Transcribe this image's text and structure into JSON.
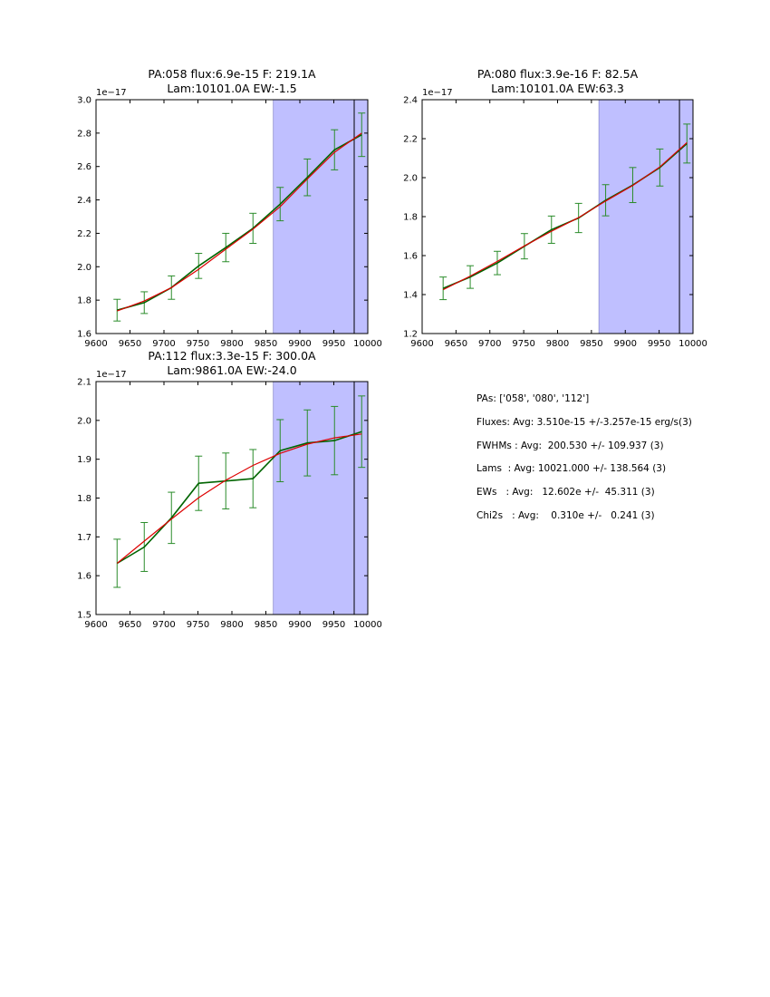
{
  "chart_data": [
    {
      "type": "line",
      "title": [
        "PA:058 flux:6.9e-15 F: 219.1A",
        "Lam:10101.0A EW:-1.5"
      ],
      "offset_label": "1e−17",
      "xlim": [
        9600,
        10000
      ],
      "ylim": [
        1.6,
        3.0
      ],
      "xticks": [
        9600,
        9650,
        9700,
        9750,
        9800,
        9850,
        9900,
        9950,
        10000
      ],
      "yticks": [
        1.6,
        1.8,
        2.0,
        2.2,
        2.4,
        2.6,
        2.8,
        3.0
      ],
      "ytick_labels": [
        "1.6",
        "1.8",
        "2.0",
        "2.2",
        "2.4",
        "2.6",
        "2.8",
        "3.0"
      ],
      "shaded_span": [
        9861,
        10000
      ],
      "vline": 9980,
      "x": [
        9631,
        9671,
        9711,
        9751,
        9791,
        9831,
        9871,
        9911,
        9951,
        9991
      ],
      "series": [
        {
          "color": "#006400",
          "values": [
            1.74,
            1.785,
            1.875,
            2.005,
            2.115,
            2.23,
            2.375,
            2.535,
            2.7,
            2.79
          ],
          "errors": [
            0.065,
            0.065,
            0.07,
            0.075,
            0.085,
            0.09,
            0.1,
            0.11,
            0.12,
            0.13
          ]
        },
        {
          "color": "#dd0000",
          "values": [
            1.735,
            1.795,
            1.875,
            1.985,
            2.105,
            2.225,
            2.36,
            2.525,
            2.685,
            2.8
          ]
        }
      ]
    },
    {
      "type": "line",
      "title": [
        "PA:080 flux:3.9e-16 F: 82.5A",
        "Lam:10101.0A EW:63.3"
      ],
      "offset_label": "1e−17",
      "xlim": [
        9600,
        10000
      ],
      "ylim": [
        1.2,
        2.4
      ],
      "xticks": [
        9600,
        9650,
        9700,
        9750,
        9800,
        9850,
        9900,
        9950,
        10000
      ],
      "yticks": [
        1.2,
        1.4,
        1.6,
        1.8,
        2.0,
        2.2,
        2.4
      ],
      "ytick_labels": [
        "1.2",
        "1.4",
        "1.6",
        "1.8",
        "2.0",
        "2.2",
        "2.4"
      ],
      "shaded_span": [
        9861,
        10000
      ],
      "vline": 9980,
      "x": [
        9631,
        9671,
        9711,
        9751,
        9791,
        9831,
        9871,
        9911,
        9951,
        9991
      ],
      "series": [
        {
          "color": "#006400",
          "values": [
            1.432,
            1.49,
            1.562,
            1.648,
            1.733,
            1.793,
            1.884,
            1.962,
            2.052,
            2.175
          ],
          "errors": [
            0.058,
            0.058,
            0.06,
            0.065,
            0.07,
            0.075,
            0.08,
            0.09,
            0.095,
            0.1
          ]
        },
        {
          "color": "#dd0000",
          "values": [
            1.425,
            1.495,
            1.57,
            1.65,
            1.725,
            1.795,
            1.88,
            1.96,
            2.055,
            2.18
          ]
        }
      ]
    },
    {
      "type": "line",
      "title": [
        "PA:112 flux:3.3e-15 F: 300.0A",
        "Lam:9861.0A EW:-24.0"
      ],
      "offset_label": "1e−17",
      "xlim": [
        9600,
        10000
      ],
      "ylim": [
        1.5,
        2.1
      ],
      "xticks": [
        9600,
        9650,
        9700,
        9750,
        9800,
        9850,
        9900,
        9950,
        10000
      ],
      "yticks": [
        1.5,
        1.6,
        1.7,
        1.8,
        1.9,
        2.0,
        2.1
      ],
      "ytick_labels": [
        "1.5",
        "1.6",
        "1.7",
        "1.8",
        "1.9",
        "2.0",
        "2.1"
      ],
      "shaded_span": [
        9861,
        10000
      ],
      "vline": 9980,
      "x": [
        9631,
        9671,
        9711,
        9751,
        9791,
        9831,
        9871,
        9911,
        9951,
        9991
      ],
      "series": [
        {
          "color": "#006400",
          "values": [
            1.632,
            1.674,
            1.749,
            1.838,
            1.844,
            1.85,
            1.922,
            1.942,
            1.948,
            1.971
          ],
          "errors": [
            0.062,
            0.063,
            0.066,
            0.07,
            0.072,
            0.075,
            0.08,
            0.085,
            0.088,
            0.092
          ]
        },
        {
          "color": "#dd0000",
          "values": [
            1.632,
            1.689,
            1.746,
            1.801,
            1.846,
            1.884,
            1.915,
            1.939,
            1.955,
            1.965
          ]
        }
      ]
    }
  ],
  "stats": [
    "PAs: ['058', '080', '112']",
    "Fluxes: Avg: 3.510e-15 +/-3.257e-15 erg/s(3)",
    "FWHMs : Avg:  200.530 +/- 109.937 (3)",
    "Lams  : Avg: 10021.000 +/- 138.564 (3)",
    "EWs   : Avg:   12.602e +/-  45.311 (3)",
    "Chi2s   : Avg:    0.310e +/-   0.241 (3)"
  ],
  "colors": {
    "shade": "#bfbfff",
    "error_bars": "#2a8c2a"
  }
}
